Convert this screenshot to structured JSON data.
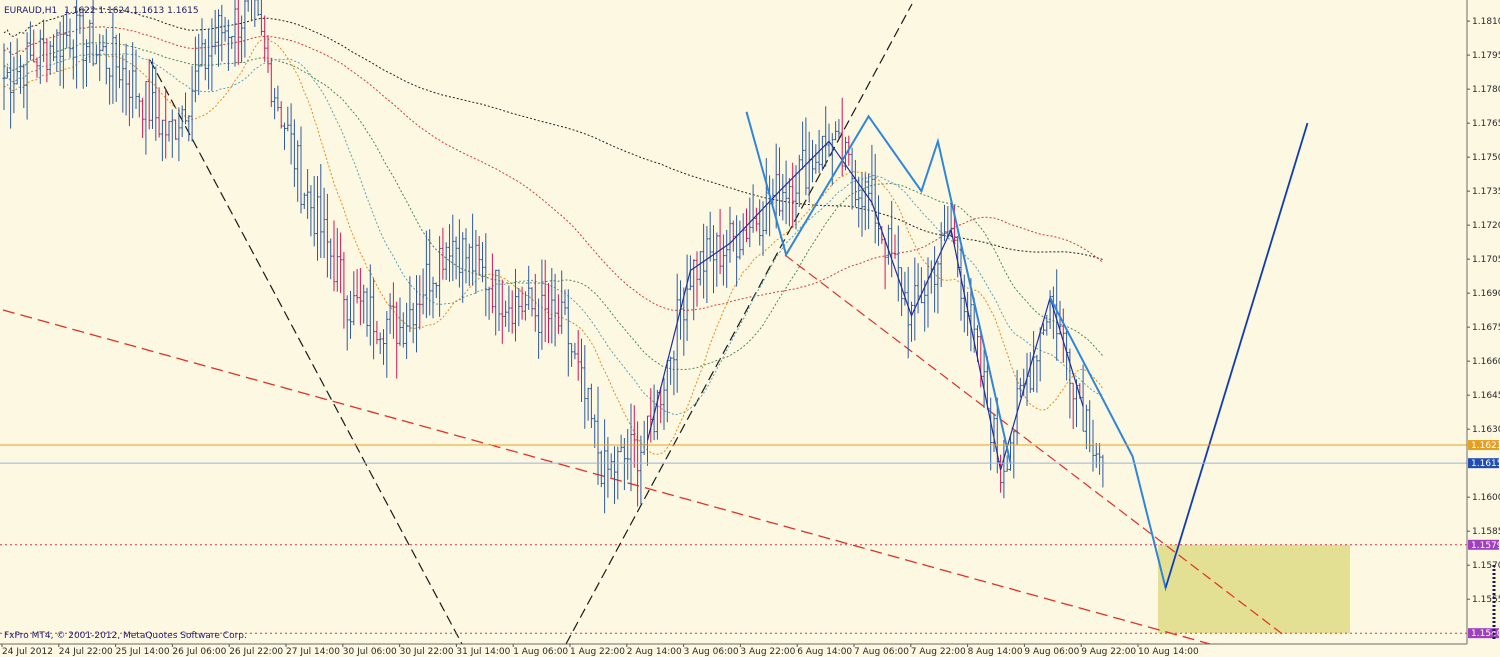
{
  "header": {
    "symbol": "EURAUD,H1",
    "ohlc": "1.1622 1.1624 1.1613 1.1615"
  },
  "footer": {
    "copyright": "FxPro MT4, © 2001-2012, MetaQuotes Software Corp."
  },
  "colors": {
    "background": "#fdf8e1",
    "bar_up": "#2d5aa0",
    "bar_down": "#d4145a",
    "price_line": "#9ab4d8",
    "ask_line": "#e6a020",
    "level_line": "#e0304a",
    "zigzag_light": "#2f86d8",
    "zigzag_dark": "#1f2fa0",
    "target_box": "#e3df93",
    "tag_price": "#1f4fb4",
    "tag_ask": "#e6a020",
    "tag_level": "#a040c0"
  },
  "chart_data": {
    "type": "candlestick-ohlc",
    "timeframe": "H1",
    "ylim": [
      1.1537,
      1.1818
    ],
    "y_ticks": [
      "1.1810",
      "1.1795",
      "1.1780",
      "1.1765",
      "1.1750",
      "1.1735",
      "1.1720",
      "1.1705",
      "1.1690",
      "1.1675",
      "1.1660",
      "1.1645",
      "1.1630",
      "1.1600",
      "1.1585",
      "1.1570",
      "1.1555"
    ],
    "x_tick_labels": [
      "24 Jul 2012",
      "24 Jul 22:00",
      "25 Jul 14:00",
      "26 Jul 06:00",
      "26 Jul 22:00",
      "27 Jul 14:00",
      "30 Jul 06:00",
      "30 Jul 22:00",
      "31 Jul 14:00",
      "1 Aug 06:00",
      "1 Aug 22:00",
      "2 Aug 14:00",
      "3 Aug 06:00",
      "3 Aug 22:00",
      "6 Aug 14:00",
      "7 Aug 06:00",
      "7 Aug 22:00",
      "8 Aug 14:00",
      "9 Aug 06:00",
      "9 Aug 22:00",
      "10 Aug 14:00"
    ],
    "price_tags": {
      "ask": "1.1623",
      "bid": "1.1615",
      "level_upper": "1.1579",
      "level_lower": "1.1540"
    },
    "anchors": [
      {
        "bar": 0,
        "price": 1.1785
      },
      {
        "bar": 20,
        "price": 1.1805
      },
      {
        "bar": 35,
        "price": 1.179
      },
      {
        "bar": 50,
        "price": 1.176
      },
      {
        "bar": 65,
        "price": 1.1805
      },
      {
        "bar": 75,
        "price": 1.1815
      },
      {
        "bar": 90,
        "price": 1.174
      },
      {
        "bar": 105,
        "price": 1.1685
      },
      {
        "bar": 120,
        "price": 1.1675
      },
      {
        "bar": 135,
        "price": 1.1715
      },
      {
        "bar": 150,
        "price": 1.169
      },
      {
        "bar": 170,
        "price": 1.1675
      },
      {
        "bar": 182,
        "price": 1.161
      },
      {
        "bar": 195,
        "price": 1.1625
      },
      {
        "bar": 208,
        "price": 1.17
      },
      {
        "bar": 220,
        "price": 1.1712
      },
      {
        "bar": 235,
        "price": 1.1735
      },
      {
        "bar": 250,
        "price": 1.1757
      },
      {
        "bar": 263,
        "price": 1.173
      },
      {
        "bar": 275,
        "price": 1.168
      },
      {
        "bar": 287,
        "price": 1.1718
      },
      {
        "bar": 302,
        "price": 1.1612
      },
      {
        "bar": 317,
        "price": 1.1688
      },
      {
        "bar": 327,
        "price": 1.164
      },
      {
        "bar": 333,
        "price": 1.1615
      }
    ],
    "zigzag_projection": [
      {
        "bar": 317,
        "price": 1.1688
      },
      {
        "bar": 342,
        "price": 1.1618
      },
      {
        "bar": 352,
        "price": 1.156
      },
      {
        "bar": 395,
        "price": 1.1765
      }
    ]
  }
}
